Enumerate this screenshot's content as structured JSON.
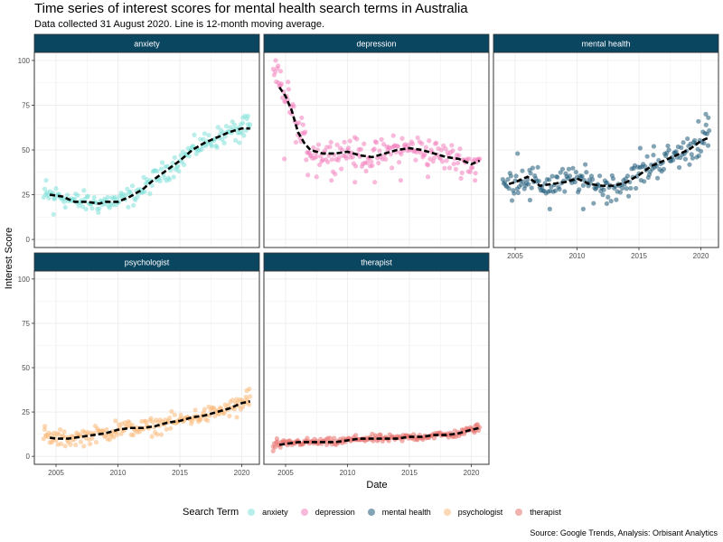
{
  "title": "Time series of interest scores for mental health search terms in Australia",
  "subtitle": "Data collected 31 August 2020. Line is 12-month moving average.",
  "caption": "Source: Google Trends, Analysis: Orbisant Analytics",
  "legend": {
    "title": "Search Term",
    "items": [
      {
        "label": "anxiety",
        "color": "#7fe0d8"
      },
      {
        "label": "depression",
        "color": "#f27fbd"
      },
      {
        "label": "mental health",
        "color": "#1e5a78"
      },
      {
        "label": "psychologist",
        "color": "#f9b877"
      },
      {
        "label": "therapist",
        "color": "#e8736e"
      }
    ]
  },
  "chart_data": {
    "type": "scatter",
    "xlabel": "Date",
    "ylabel": "Interest Score",
    "xlim": [
      2004,
      2020.67
    ],
    "ylim": [
      0,
      100
    ],
    "x_ticks": [
      "2005",
      "2010",
      "2015",
      "2020"
    ],
    "y_ticks": [
      "0",
      "25",
      "50",
      "75",
      "100"
    ],
    "panel_header_color": "#0b4661",
    "moving_average_style": "black dashed",
    "series": [
      {
        "name": "anxiety",
        "color": "#7fe0d8",
        "anchors": [
          [
            2004.0,
            23
          ],
          [
            2004.5,
            25
          ],
          [
            2005.5,
            24
          ],
          [
            2006.5,
            21
          ],
          [
            2007.5,
            21
          ],
          [
            2008.5,
            20
          ],
          [
            2009.0,
            21
          ],
          [
            2010.0,
            21
          ],
          [
            2011.0,
            24
          ],
          [
            2012.0,
            28
          ],
          [
            2013.0,
            34
          ],
          [
            2014.0,
            39
          ],
          [
            2015.0,
            44
          ],
          [
            2016.0,
            50
          ],
          [
            2017.0,
            54
          ],
          [
            2018.0,
            57
          ],
          [
            2019.0,
            60
          ],
          [
            2020.0,
            62
          ],
          [
            2020.67,
            62
          ]
        ],
        "spread": 5,
        "outliers": [
          [
            2004.8,
            14
          ],
          [
            2020.5,
            69
          ],
          [
            2004.2,
            33
          ],
          [
            2019.8,
            54
          ],
          [
            2020.1,
            68
          ]
        ]
      },
      {
        "name": "depression",
        "color": "#f27fbd",
        "anchors": [
          [
            2004.0,
            92
          ],
          [
            2004.5,
            85
          ],
          [
            2005.0,
            80
          ],
          [
            2005.5,
            72
          ],
          [
            2006.0,
            60
          ],
          [
            2006.5,
            54
          ],
          [
            2007.0,
            50
          ],
          [
            2008.0,
            48
          ],
          [
            2009.0,
            48
          ],
          [
            2010.0,
            49
          ],
          [
            2011.0,
            47
          ],
          [
            2012.0,
            46
          ],
          [
            2013.0,
            48
          ],
          [
            2014.0,
            50
          ],
          [
            2015.0,
            51
          ],
          [
            2016.0,
            50
          ],
          [
            2017.0,
            48
          ],
          [
            2018.0,
            46
          ],
          [
            2019.0,
            45
          ],
          [
            2020.0,
            42
          ],
          [
            2020.67,
            44
          ]
        ],
        "spread": 7,
        "outliers": [
          [
            2004.2,
            100
          ],
          [
            2004.4,
            97
          ],
          [
            2004.6,
            94
          ],
          [
            2005.2,
            88
          ],
          [
            2004.9,
            45
          ],
          [
            2006.8,
            36
          ],
          [
            2007.5,
            35
          ],
          [
            2008.7,
            33
          ],
          [
            2010.6,
            32
          ],
          [
            2012.2,
            32
          ],
          [
            2014.3,
            33
          ],
          [
            2016.5,
            35
          ],
          [
            2020.3,
            33
          ],
          [
            2006.3,
            68
          ],
          [
            2010.2,
            55
          ],
          [
            2013.7,
            58
          ]
        ]
      },
      {
        "name": "mental health",
        "color": "#1e5a78",
        "anchors": [
          [
            2004.0,
            30
          ],
          [
            2005.0,
            32
          ],
          [
            2006.0,
            35
          ],
          [
            2007.0,
            30
          ],
          [
            2008.0,
            31
          ],
          [
            2009.0,
            32
          ],
          [
            2010.0,
            34
          ],
          [
            2011.0,
            31
          ],
          [
            2012.0,
            30
          ],
          [
            2013.0,
            30
          ],
          [
            2014.0,
            32
          ],
          [
            2015.0,
            36
          ],
          [
            2016.0,
            41
          ],
          [
            2017.0,
            44
          ],
          [
            2018.0,
            47
          ],
          [
            2019.0,
            50
          ],
          [
            2020.0,
            55
          ],
          [
            2020.67,
            57
          ]
        ],
        "spread": 7,
        "outliers": [
          [
            2005.2,
            48
          ],
          [
            2007.8,
            17
          ],
          [
            2010.5,
            17
          ],
          [
            2012.4,
            20
          ],
          [
            2015.1,
            51
          ],
          [
            2019.8,
            66
          ],
          [
            2020.4,
            70
          ],
          [
            2020.6,
            68
          ],
          [
            2016.2,
            52
          ],
          [
            2006.2,
            22
          ]
        ]
      },
      {
        "name": "psychologist",
        "color": "#f9b877",
        "anchors": [
          [
            2004.0,
            11
          ],
          [
            2005.0,
            10
          ],
          [
            2006.0,
            10
          ],
          [
            2007.0,
            11
          ],
          [
            2008.0,
            12
          ],
          [
            2009.0,
            13
          ],
          [
            2010.0,
            15
          ],
          [
            2011.0,
            16
          ],
          [
            2012.0,
            16
          ],
          [
            2013.0,
            17
          ],
          [
            2014.0,
            19
          ],
          [
            2015.0,
            20
          ],
          [
            2016.0,
            22
          ],
          [
            2017.0,
            23
          ],
          [
            2018.0,
            25
          ],
          [
            2019.0,
            27
          ],
          [
            2020.0,
            30
          ],
          [
            2020.67,
            31
          ]
        ],
        "spread": 4,
        "outliers": [
          [
            2004.1,
            17
          ],
          [
            2020.4,
            37
          ],
          [
            2020.6,
            38
          ],
          [
            2019.6,
            22
          ],
          [
            2009.8,
            20
          ]
        ]
      },
      {
        "name": "therapist",
        "color": "#e8736e",
        "anchors": [
          [
            2004.0,
            6
          ],
          [
            2005.0,
            7
          ],
          [
            2006.0,
            8
          ],
          [
            2007.0,
            8
          ],
          [
            2008.0,
            8
          ],
          [
            2009.0,
            8
          ],
          [
            2010.0,
            9
          ],
          [
            2011.0,
            10
          ],
          [
            2012.0,
            10
          ],
          [
            2013.0,
            10
          ],
          [
            2014.0,
            10
          ],
          [
            2015.0,
            11
          ],
          [
            2016.0,
            11
          ],
          [
            2017.0,
            12
          ],
          [
            2018.0,
            12
          ],
          [
            2019.0,
            13
          ],
          [
            2020.0,
            15
          ],
          [
            2020.67,
            16
          ]
        ],
        "spread": 1.8,
        "outliers": [
          [
            2004.0,
            3
          ],
          [
            2004.3,
            10
          ],
          [
            2020.5,
            18
          ],
          [
            2020.3,
            17
          ]
        ]
      }
    ]
  }
}
